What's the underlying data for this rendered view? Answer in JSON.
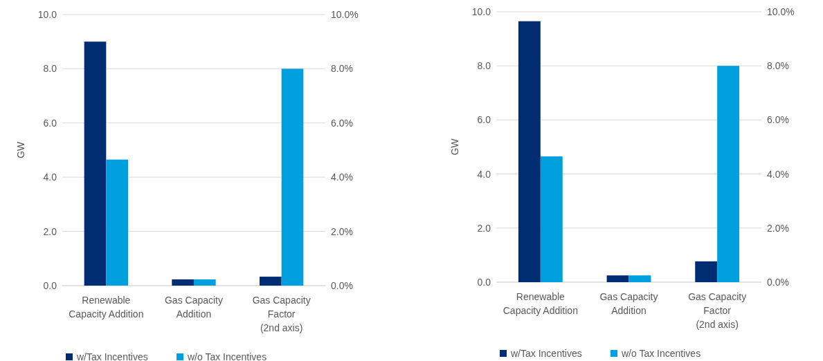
{
  "chart_data": [
    {
      "type": "bar",
      "ylabel": "GW",
      "categories": [
        "Renewable\nCapacity Addition",
        "Gas Capacity\nAddition",
        "Gas Capacity\nFactor\n(2nd axis)"
      ],
      "series": [
        {
          "name": "w/Tax Incentives",
          "color": "#002d72",
          "values": [
            9.0,
            0.23,
            null
          ]
        },
        {
          "name": "w/o Tax Incentives",
          "color": "#009fdf",
          "values": [
            4.65,
            0.23,
            null
          ]
        },
        {
          "color": "#002d72",
          "axis": "y2",
          "values": [
            null,
            null,
            0.33
          ]
        },
        {
          "color": "#009fdf",
          "axis": "y2",
          "values": [
            null,
            null,
            8.0
          ]
        }
      ],
      "ylim": [
        0,
        10
      ],
      "yticks": [
        {
          "value": 0,
          "label": "0.0"
        },
        {
          "value": 2,
          "label": "2.0"
        },
        {
          "value": 4,
          "label": "4.0"
        },
        {
          "value": 6,
          "label": "6.0"
        },
        {
          "value": 8,
          "label": "8.0"
        },
        {
          "value": 10,
          "label": "10.0"
        }
      ],
      "y2lim": [
        0,
        10
      ],
      "y2ticks": [
        {
          "value": 0,
          "label": "0.0%"
        },
        {
          "value": 2,
          "label": "2.0%"
        },
        {
          "value": 4,
          "label": "4.0%"
        },
        {
          "value": 6,
          "label": "6.0%"
        },
        {
          "value": 8,
          "label": "8.0%"
        },
        {
          "value": 10,
          "label": "10.0%"
        }
      ],
      "grid": "y",
      "legend": "bottom"
    },
    {
      "type": "bar",
      "ylabel": "GW",
      "categories": [
        "Renewable\nCapacity Addition",
        "Gas Capacity\nAddition",
        "Gas Capacity\nFactor\n(2nd axis)"
      ],
      "series": [
        {
          "name": "w/Tax Incentives",
          "color": "#002d72",
          "values": [
            9.65,
            0.25,
            null
          ]
        },
        {
          "name": "w/o Tax Incentives",
          "color": "#009fdf",
          "values": [
            4.65,
            0.25,
            null
          ]
        },
        {
          "color": "#002d72",
          "axis": "y2",
          "values": [
            null,
            null,
            0.77
          ]
        },
        {
          "color": "#009fdf",
          "axis": "y2",
          "values": [
            null,
            null,
            8.0
          ]
        }
      ],
      "ylim": [
        0,
        10
      ],
      "yticks": [
        {
          "value": 0,
          "label": "0.0"
        },
        {
          "value": 2,
          "label": "2.0"
        },
        {
          "value": 4,
          "label": "4.0"
        },
        {
          "value": 6,
          "label": "6.0"
        },
        {
          "value": 8,
          "label": "8.0"
        },
        {
          "value": 10,
          "label": "10.0"
        }
      ],
      "y2lim": [
        0,
        10
      ],
      "y2ticks": [
        {
          "value": 0,
          "label": "0.0%"
        },
        {
          "value": 2,
          "label": "2.0%"
        },
        {
          "value": 4,
          "label": "4.0%"
        },
        {
          "value": 6,
          "label": "6.0%"
        },
        {
          "value": 8,
          "label": "8.0%"
        },
        {
          "value": 10,
          "label": "10.0%"
        }
      ],
      "grid": "y",
      "legend": "bottom"
    }
  ]
}
